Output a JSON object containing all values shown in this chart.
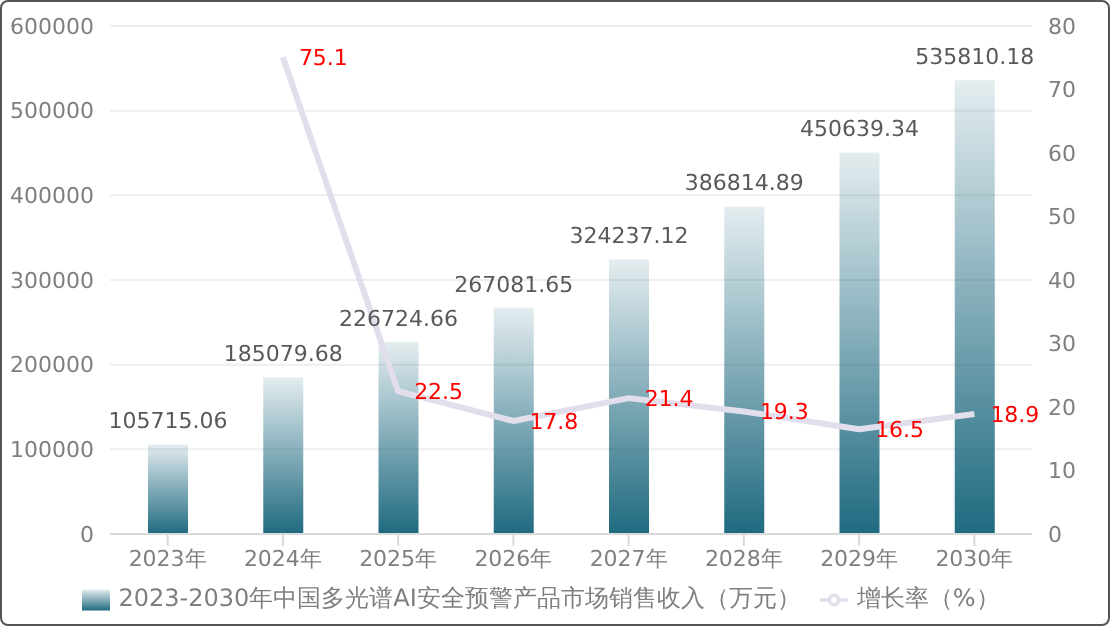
{
  "chart_data": {
    "type": "bar",
    "categories": [
      "2023年",
      "2024年",
      "2025年",
      "2026年",
      "2027年",
      "2028年",
      "2029年",
      "2030年"
    ],
    "series": [
      {
        "name": "2023-2030年中国多光谱AI安全预警产品市场销售收入（万元）",
        "color": "#1f6a80",
        "values": [
          105715.06,
          185079.68,
          226724.66,
          267081.65,
          324237.12,
          386814.89,
          450639.34,
          535810.18
        ]
      },
      {
        "name": "增长率（%）",
        "type": "line",
        "axis": "y2",
        "color": "#e3deec",
        "values": [
          null,
          75.1,
          22.5,
          17.8,
          21.4,
          19.3,
          16.5,
          18.9
        ]
      }
    ],
    "ylim": [
      0,
      600000
    ],
    "yticks": [
      0,
      100000,
      200000,
      300000,
      400000,
      500000,
      600000
    ],
    "y2lim": [
      0,
      80
    ],
    "y2ticks": [
      0,
      10,
      20,
      30,
      40,
      50,
      60,
      70,
      80
    ],
    "grid": "y",
    "legend": "bottom",
    "data_labels": true,
    "marker": "none"
  }
}
